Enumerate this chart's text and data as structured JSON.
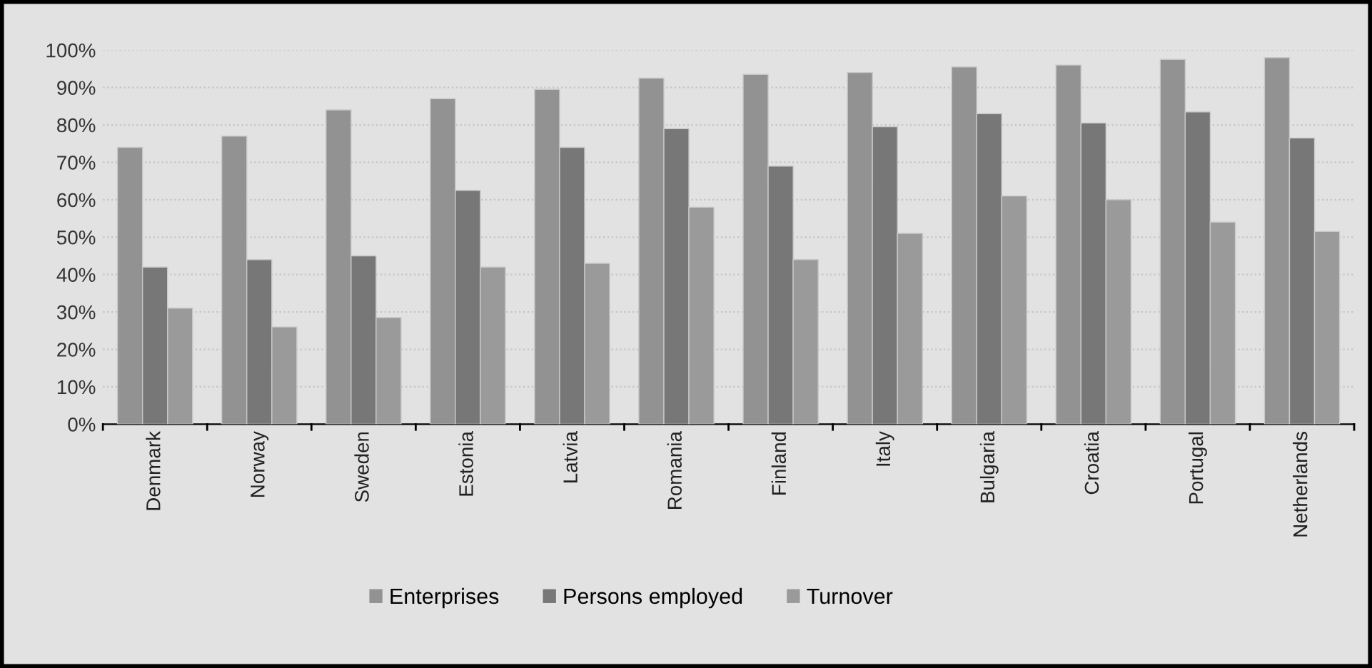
{
  "chart_data": {
    "type": "bar",
    "categories": [
      "Denmark",
      "Norway",
      "Sweden",
      "Estonia",
      "Latvia",
      "Romania",
      "Finland",
      "Italy",
      "Bulgaria",
      "Croatia",
      "Portugal",
      "Netherlands"
    ],
    "series": [
      {
        "name": "Enterprises",
        "color": "#929292",
        "values": [
          74,
          77,
          84,
          87,
          89.5,
          92.5,
          93.5,
          94,
          95.5,
          96,
          97.5,
          98
        ]
      },
      {
        "name": "Persons employed",
        "color": "#777777",
        "values": [
          42,
          44,
          45,
          62.5,
          74,
          79,
          69,
          79.5,
          83,
          80.5,
          83.5,
          76.5
        ]
      },
      {
        "name": "Turnover",
        "color": "#9a9a9a",
        "values": [
          31,
          26,
          28.5,
          42,
          43,
          58,
          44,
          51,
          61,
          60,
          54,
          51.5
        ]
      }
    ],
    "ylim": [
      0,
      100
    ],
    "yticks": [
      {
        "value": 0,
        "label": "0%"
      },
      {
        "value": 10,
        "label": "10%"
      },
      {
        "value": 20,
        "label": "20%"
      },
      {
        "value": 30,
        "label": "30%"
      },
      {
        "value": 40,
        "label": "40%"
      },
      {
        "value": 50,
        "label": "50%"
      },
      {
        "value": 60,
        "label": "60%"
      },
      {
        "value": 70,
        "label": "70%"
      },
      {
        "value": 80,
        "label": "80%"
      },
      {
        "value": 90,
        "label": "90%"
      },
      {
        "value": 100,
        "label": "100%"
      }
    ],
    "grid": "y",
    "legend": "bottom"
  }
}
